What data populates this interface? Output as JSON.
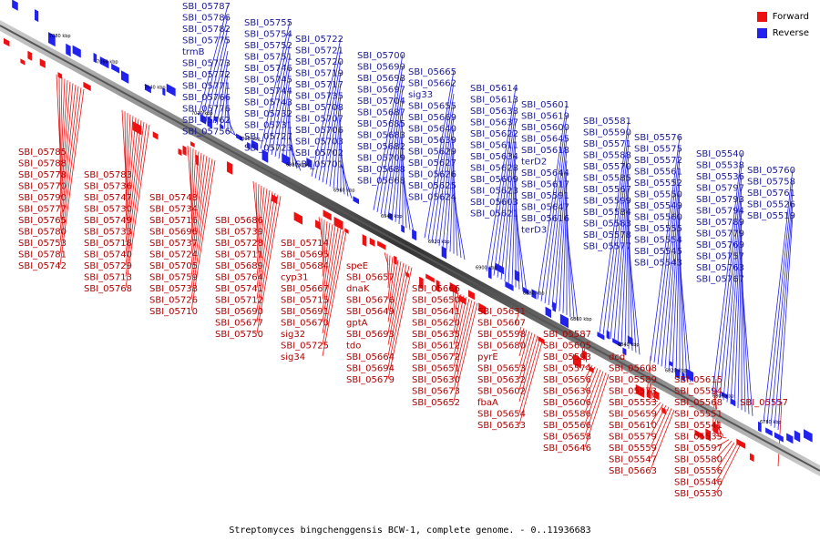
{
  "legend": {
    "forward": "Forward",
    "reverse": "Reverse",
    "forward_color": "#ee1111",
    "reverse_color": "#2222ee"
  },
  "caption": "Streptomyces bingchenggensis BCW-1, complete genome. - 0..11936683",
  "scale_ticks": [
    "7080 kbp",
    "7060 kbp",
    "7040 kbp",
    "7020 kbp",
    "7000 kbp",
    "6980 kbp",
    "6960 kbp",
    "6940 kbp",
    "6920 kbp",
    "6900 kbp",
    "6880 kbp",
    "6860 kbp",
    "6840 kbp",
    "6820 kbp",
    "6800 kbp",
    "6780 kbp"
  ],
  "reverse_labels": [
    "SBI_05787",
    "SBI_05786",
    "SBI_05782",
    "SBI_05775",
    "trmB",
    "SBI_05773",
    "SBI_05772",
    "SBI_05771",
    "SBI_05766",
    "SBI_05776",
    "SBI_05762",
    "SBI_05756",
    "SBI_05755",
    "SBI_05754",
    "SBI_05752",
    "SBI_05751",
    "SBI_05746",
    "SBI_05745",
    "SBI_05744",
    "SBI_05743",
    "SBI_05732",
    "SBI_05731",
    "SBI_05727",
    "SBI_05723",
    "SBI_05722",
    "SBI_05721",
    "SBI_05720",
    "SBI_05719",
    "SBI_05717",
    "SBI_05735",
    "SBI_05708",
    "SBI_05707",
    "SBI_05706",
    "SBI_05703",
    "SBI_05702",
    "SBI_05701",
    "SBI_05700",
    "SBI_05699",
    "SBI_05698",
    "SBI_05697",
    "SBI_05704",
    "SBI_05687",
    "SBI_05685",
    "SBI_05683",
    "SBI_05682",
    "SBI_05709",
    "SBI_05688",
    "SBI_05668",
    "SBI_05665",
    "SBI_05662",
    "sig33",
    "SBI_05655",
    "SBI_05669",
    "SBI_05640",
    "SBI_05639",
    "SBI_05629",
    "SBI_05627",
    "SBI_05626",
    "SBI_05625",
    "SBI_05624",
    "SBI_05614",
    "SBI_05613",
    "SBI_05638",
    "SBI_05637",
    "SBI_05622",
    "SBI_05611",
    "SBI_05634",
    "SBI_05628",
    "SBI_05609",
    "SBI_05623",
    "SBI_05603",
    "SBI_05621",
    "SBI_05601",
    "SBI_05619",
    "SBI_05600",
    "SBI_05645",
    "SBI_05618",
    "terD2",
    "SBI_05644",
    "SBI_05617",
    "SBI_05591",
    "SBI_05647",
    "SBI_05616",
    "terD3",
    "SBI_05581",
    "SBI_05590",
    "SBI_05571",
    "SBI_05588",
    "SBI_05570",
    "SBI_05585",
    "SBI_05567",
    "SBI_05599",
    "SBI_05584",
    "SBI_05583",
    "SBI_05578",
    "SBI_05577",
    "SBI_05576",
    "SBI_05575",
    "SBI_05572",
    "SBI_05561",
    "SBI_05552",
    "SBI_05550",
    "SBI_05549",
    "SBI_05560",
    "SBI_05555",
    "SBI_05554",
    "SBI_05545",
    "SBI_05543",
    "SBI_05540",
    "SBI_05538",
    "SBI_05536",
    "SBI_05797",
    "SBI_05793",
    "SBI_05794",
    "SBI_05789",
    "SBI_05779",
    "SBI_05769",
    "SBI_05757",
    "SBI_05763",
    "SBI_05767",
    "SBI_05760",
    "SBI_05758",
    "SBI_05761",
    "SBI_05526",
    "SBI_05519"
  ],
  "forward_labels": [
    "SBI_05785",
    "SBI_05788",
    "SBI_05778",
    "SBI_05770",
    "SBI_05790",
    "SBI_05777",
    "SBI_05765",
    "SBI_05780",
    "SBI_05753",
    "SBI_05781",
    "SBI_05742",
    "SBI_05783",
    "SBI_05736",
    "SBI_05747",
    "SBI_05730",
    "SBI_05749",
    "SBI_05733",
    "SBI_05718",
    "SBI_05740",
    "SBI_05729",
    "SBI_05713",
    "SBI_05768",
    "SBI_05748",
    "SBI_05734",
    "SBI_05716",
    "SBI_05696",
    "SBI_05737",
    "SBI_05724",
    "SBI_05705",
    "SBI_05759",
    "SBI_05738",
    "SBI_05726",
    "SBI_05710",
    "SBI_05686",
    "SBI_05739",
    "SBI_05728",
    "SBI_05711",
    "SBI_05689",
    "SBI_05764",
    "SBI_05741",
    "SBI_05712",
    "SBI_05690",
    "SBI_05677",
    "SBI_05750",
    "SBI_05714",
    "SBI_05695",
    "SBI_05684",
    "cyp31",
    "SBI_05667",
    "SBI_05715",
    "SBI_05691",
    "SBI_05670",
    "sig32",
    "SBI_05725",
    "sig34",
    "speE",
    "SBI_05657",
    "dnaK",
    "SBI_05676",
    "SBI_05649",
    "gptA",
    "SBI_05693",
    "tdo",
    "SBI_05664",
    "SBI_05694",
    "SBI_05679",
    "SBI_05666",
    "SBI_05650",
    "SBI_05641",
    "SBI_05620",
    "SBI_05635",
    "SBI_05612",
    "SBI_05672",
    "SBI_05651",
    "SBI_05630",
    "SBI_05673",
    "SBI_05652",
    "SBI_05631",
    "SBI_05607",
    "SBI_05598",
    "SBI_05680",
    "pyrE",
    "SBI_05653",
    "SBI_05632",
    "SBI_05602",
    "fbaA",
    "SBI_05654",
    "SBI_05633",
    "SBI_05587",
    "SBI_05605",
    "SBI_05593",
    "SBI_05574",
    "SBI_05656",
    "SBI_05636",
    "SBI_05606",
    "SBI_05586",
    "SBI_05566",
    "SBI_05658",
    "SBI_05646",
    "dcd",
    "SBI_05608",
    "SBI_05589",
    "SBI_05573",
    "SBI_05553",
    "SBI_05659",
    "SBI_05610",
    "SBI_05579",
    "SBI_05559",
    "SBI_05547",
    "SBI_05663",
    "SBI_05615",
    "SBI_05594",
    "SBI_05568",
    "SBI_05551",
    "SBI_05541",
    "SBI_05535",
    "SBI_05597",
    "SBI_05580",
    "SBI_05556",
    "SBI_05546",
    "SBI_05530",
    "SBI_05557"
  ]
}
